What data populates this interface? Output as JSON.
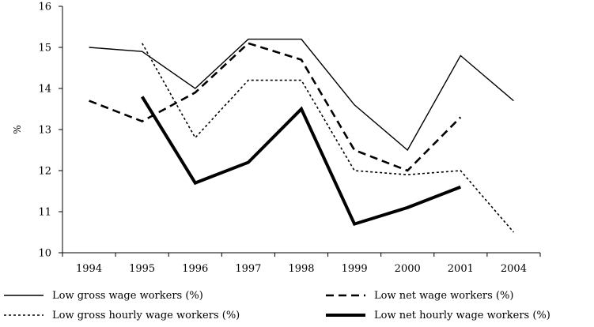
{
  "chart_data": {
    "type": "line",
    "title": "",
    "xlabel": "",
    "ylabel": "%",
    "categories": [
      "1994",
      "1995",
      "1996",
      "1997",
      "1998",
      "1999",
      "2000",
      "2001",
      "2004"
    ],
    "ylim": [
      10,
      16
    ],
    "yticks": [
      "10",
      "11",
      "12",
      "13",
      "14",
      "15",
      "16"
    ],
    "grid": false,
    "legend_position": "bottom",
    "series": [
      {
        "name": "Low gross wage workers (%)",
        "style": "solid-thin",
        "values": [
          15.0,
          14.9,
          14.0,
          15.2,
          15.2,
          13.6,
          12.5,
          14.8,
          13.7
        ]
      },
      {
        "name": "Low net wage workers (%)",
        "style": "dashed",
        "values": [
          13.7,
          13.2,
          13.9,
          15.1,
          14.7,
          12.5,
          12.0,
          13.3,
          null
        ]
      },
      {
        "name": "Low gross hourly wage workers (%)",
        "style": "dotted",
        "values": [
          null,
          15.1,
          12.8,
          14.2,
          14.2,
          12.0,
          11.9,
          12.0,
          10.5
        ]
      },
      {
        "name": "Low net hourly wage workers (%)",
        "style": "solid-thick",
        "values": [
          null,
          13.8,
          11.7,
          12.2,
          13.5,
          10.7,
          11.1,
          11.6,
          null
        ]
      }
    ]
  }
}
